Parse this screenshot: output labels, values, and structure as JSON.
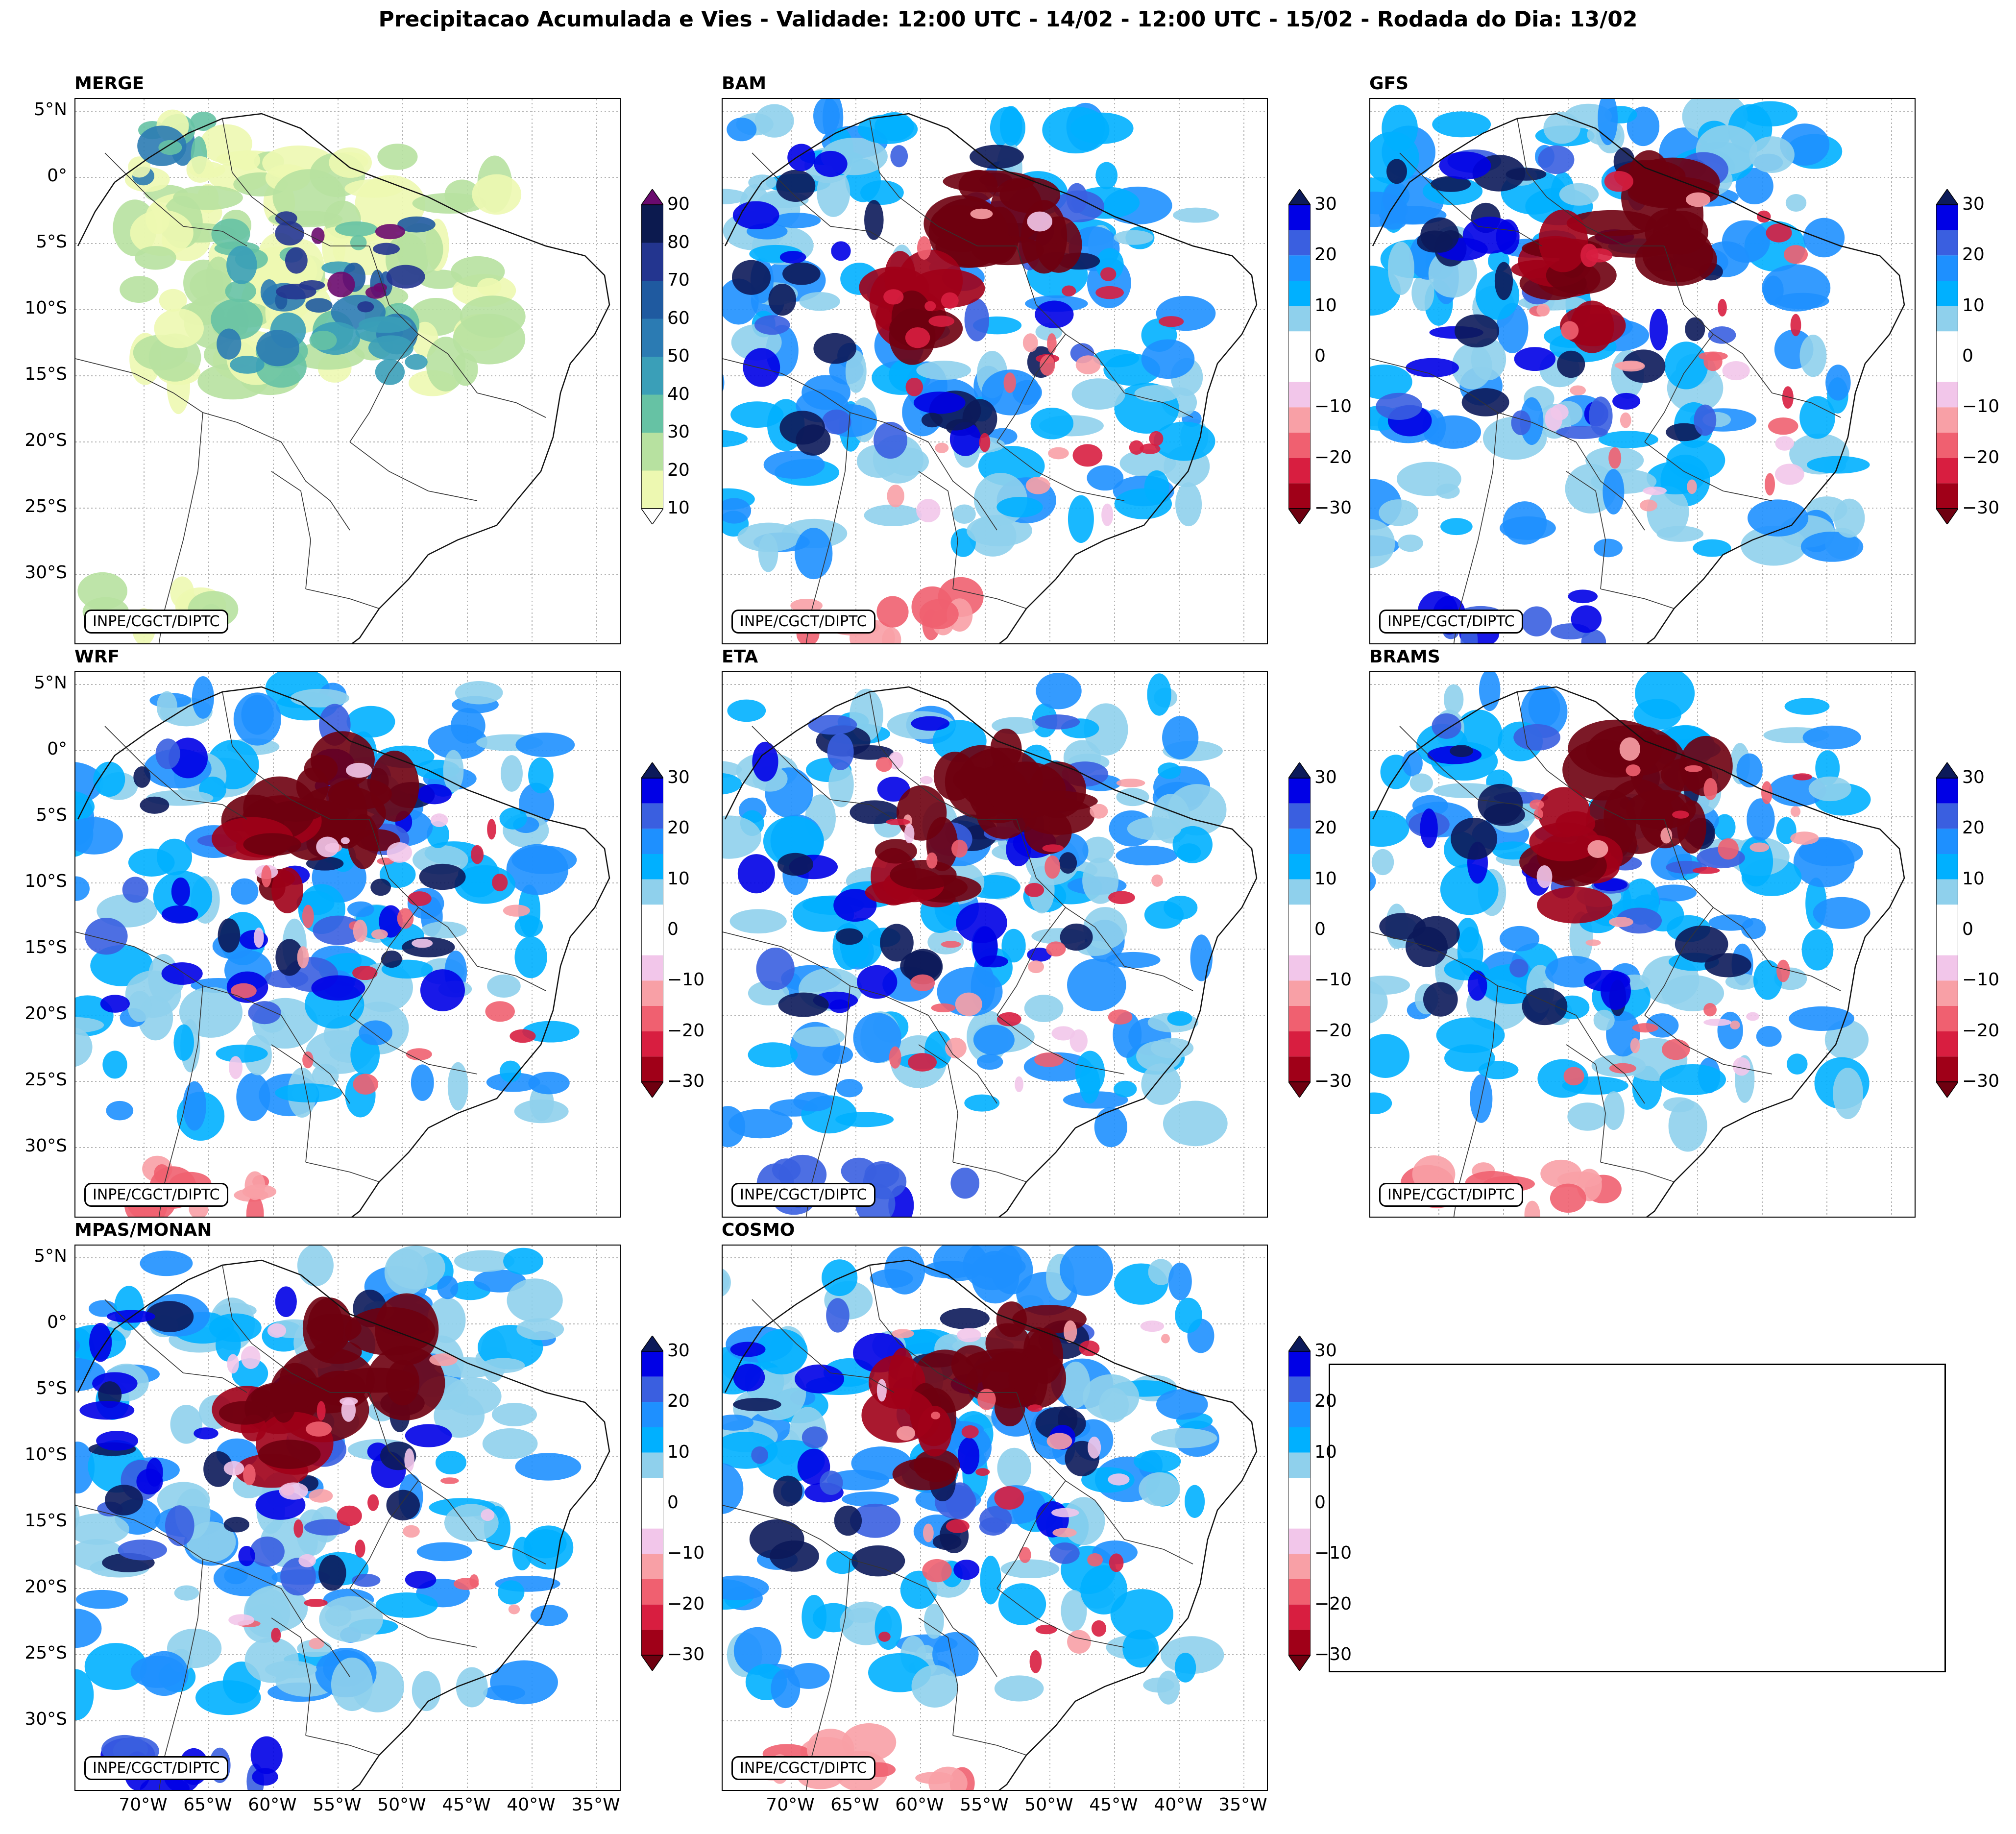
{
  "title": "Precipitacao Acumulada e Vies - Validade: 12:00 UTC - 14/02 - 12:00 UTC - 15/02 - Rodada do Dia: 13/02",
  "credit": "INPE/CGCT/DIPTC",
  "lat_labels": [
    "5°N",
    "0°",
    "5°S",
    "10°S",
    "15°S",
    "20°S",
    "25°S",
    "30°S"
  ],
  "lon_labels": [
    "70°W",
    "65°W",
    "60°W",
    "55°W",
    "50°W",
    "45°W",
    "40°W",
    "35°W"
  ],
  "panels": [
    {
      "name": "MERGE",
      "type": "precip"
    },
    {
      "name": "BAM",
      "type": "bias"
    },
    {
      "name": "GFS",
      "type": "bias"
    },
    {
      "name": "WRF",
      "type": "bias"
    },
    {
      "name": "ETA",
      "type": "bias"
    },
    {
      "name": "BRAMS",
      "type": "bias"
    },
    {
      "name": "MPAS/MONAN",
      "type": "bias"
    },
    {
      "name": "COSMO",
      "type": "bias"
    }
  ],
  "precip_colorbar": {
    "labels": [
      "90",
      "80",
      "70",
      "60",
      "50",
      "40",
      "30",
      "20",
      "10"
    ],
    "colors": [
      "#0c1a4f",
      "#23358f",
      "#1f5aa0",
      "#2b7bb3",
      "#3a9fb8",
      "#66c2a4",
      "#b7e1a0",
      "#edf8b1"
    ],
    "over_color": "#6a0a6e"
  },
  "bias_colorbar": {
    "labels": [
      "30",
      "20",
      "10",
      "0",
      "−10",
      "−20",
      "−30"
    ],
    "colors": [
      "#0000e6",
      "#3a5fe0",
      "#1e90ff",
      "#00b0ff",
      "#8fd0ec",
      "#ffffff",
      "#ffffff",
      "#f2c6ea",
      "#f8a0a6",
      "#f06070",
      "#d81e40",
      "#a00018"
    ],
    "over_color": "#0c1a5a",
    "under_color": "#6e0010"
  }
}
